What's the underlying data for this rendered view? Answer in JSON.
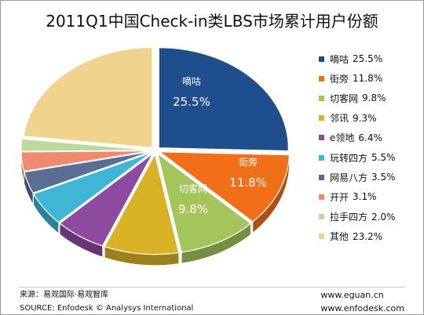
{
  "chart_data": {
    "type": "pie",
    "title": "2011Q1中国Check-in类LBS市场累计用户份额",
    "slices": [
      {
        "name": "嘀咕",
        "value": 25.5,
        "color": "#1f4e8c"
      },
      {
        "name": "街旁",
        "value": 11.8,
        "color": "#f26f1a"
      },
      {
        "name": "切客网",
        "value": 9.8,
        "color": "#a3c55a"
      },
      {
        "name": "邻讯",
        "value": 9.3,
        "color": "#d9b226"
      },
      {
        "name": "e领地",
        "value": 6.4,
        "color": "#8e4a9e"
      },
      {
        "name": "玩转四方",
        "value": 5.5,
        "color": "#3fb6d6"
      },
      {
        "name": "网易八方",
        "value": 3.5,
        "color": "#5a6d94"
      },
      {
        "name": "开开",
        "value": 3.1,
        "color": "#f08a6f"
      },
      {
        "name": "拉手四方",
        "value": 2.0,
        "color": "#bfd89b"
      },
      {
        "name": "其他",
        "value": 23.2,
        "color": "#f0d38c"
      }
    ],
    "value_suffix": "%",
    "data_labels": [
      {
        "name": "嘀咕",
        "value": "25.5%"
      },
      {
        "name": "街旁",
        "value": "11.8%"
      },
      {
        "name": "切客网",
        "value": "9.8%"
      }
    ],
    "legend_position": "right"
  },
  "footer": {
    "source_cn": "来源：易观国际·易观智库",
    "source_en": "SOURCE: Enfodesk © Analysys International",
    "url1": "www.eguan.cn",
    "url2": "www.enfodesk.com"
  }
}
